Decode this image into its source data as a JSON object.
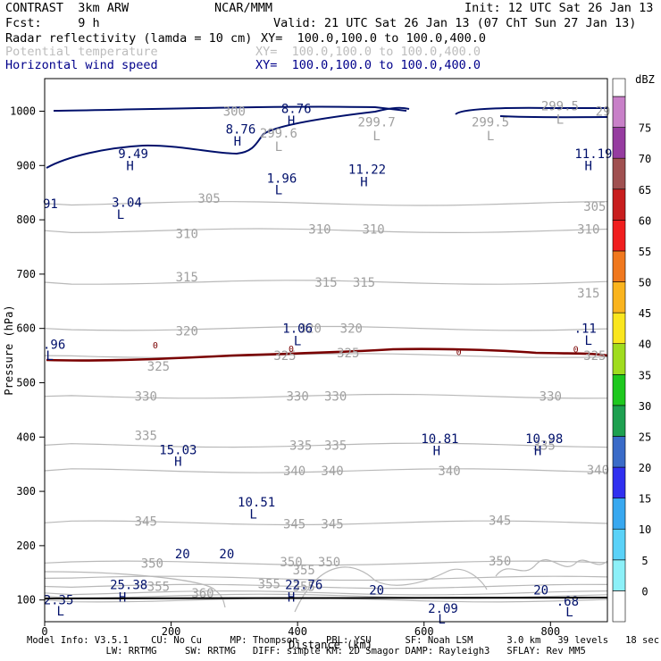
{
  "header": {
    "model": "CONTRAST  3km ARW",
    "org": "NCAR/MMM",
    "init": "Init: 12 UTC Sat 26 Jan 13",
    "fcst": "Fcst:     9 h",
    "valid": "Valid: 21 UTC Sat 26 Jan 13 (07 ChT Sun 27 Jan 13)",
    "fields": [
      {
        "label": "Radar reflectivity (lamda = 10 cm)",
        "xy": "XY=  100.0,100.0 to 100.0,400.0",
        "color": "#000000"
      },
      {
        "label": "Potential temperature",
        "xy": "XY=  100.0,100.0 to 100.0,400.0",
        "color": "#bdbdbd"
      },
      {
        "label": "Horizontal wind speed",
        "xy": "XY=  100.0,100.0 to 100.0,400.0",
        "color": "#00008b"
      }
    ]
  },
  "footer": {
    "line1": "Model Info: V3.5.1    CU: No Cu     MP: Thompson     PBL: YSU      SF: Noah LSM      3.0 km   39 levels   18 sec",
    "line2": "              LW: RRTMG     SW: RRTMG   DIFF: simple KM: 2D Smagor DAMP: Rayleigh3   SFLAY: Rev MM5"
  },
  "chart_data": {
    "type": "cross-section",
    "xlabel": "Distance (km)",
    "ylabel": "Pressure (hPa)",
    "xlim": [
      0,
      890
    ],
    "ylim": [
      1060,
      60
    ],
    "xticks": [
      0,
      200,
      400,
      600,
      800
    ],
    "yticks": [
      100,
      200,
      300,
      400,
      500,
      600,
      700,
      800,
      900,
      1000
    ],
    "colorbar": {
      "unit": "dBZ",
      "levels": [
        0,
        5,
        10,
        15,
        20,
        25,
        30,
        35,
        40,
        45,
        50,
        55,
        60,
        65,
        70,
        75
      ],
      "colors": [
        "#ffffff",
        "#8cf0f8",
        "#5ad2f8",
        "#38a8f0",
        "#3030f0",
        "#3a6bc8",
        "#1ea050",
        "#1ec81e",
        "#a0dc1e",
        "#fae61e",
        "#fab41e",
        "#f0781e",
        "#f01e1e",
        "#c81e1e",
        "#a05050",
        "#963ca0",
        "#c880c8"
      ]
    },
    "theta_labels": [
      {
        "v": "360",
        "x": 250,
        "p": 113
      },
      {
        "v": "355",
        "x": 180,
        "p": 125
      },
      {
        "v": "355",
        "x": 355,
        "p": 130
      },
      {
        "v": "355",
        "x": 410,
        "p": 125
      },
      {
        "v": "350",
        "x": 170,
        "p": 168
      },
      {
        "v": "355",
        "x": 410,
        "p": 155
      },
      {
        "v": "350",
        "x": 390,
        "p": 170
      },
      {
        "v": "350",
        "x": 450,
        "p": 170
      },
      {
        "v": "350",
        "x": 720,
        "p": 172
      },
      {
        "v": "345",
        "x": 160,
        "p": 245
      },
      {
        "v": "345",
        "x": 395,
        "p": 240
      },
      {
        "v": "345",
        "x": 455,
        "p": 240
      },
      {
        "v": "345",
        "x": 720,
        "p": 247
      },
      {
        "v": "340",
        "x": 395,
        "p": 338
      },
      {
        "v": "340",
        "x": 455,
        "p": 338
      },
      {
        "v": "340",
        "x": 640,
        "p": 338
      },
      {
        "v": "340",
        "x": 875,
        "p": 340
      },
      {
        "v": "335",
        "x": 160,
        "p": 403
      },
      {
        "v": "335",
        "x": 405,
        "p": 385
      },
      {
        "v": "335",
        "x": 460,
        "p": 385
      },
      {
        "v": "335",
        "x": 790,
        "p": 385
      },
      {
        "v": "330",
        "x": 160,
        "p": 475
      },
      {
        "v": "330",
        "x": 400,
        "p": 475
      },
      {
        "v": "330",
        "x": 460,
        "p": 475
      },
      {
        "v": "330",
        "x": 800,
        "p": 475
      },
      {
        "v": "325",
        "x": 180,
        "p": 530
      },
      {
        "v": "325",
        "x": 380,
        "p": 550
      },
      {
        "v": "325",
        "x": 480,
        "p": 555
      },
      {
        "v": "325",
        "x": 870,
        "p": 550
      },
      {
        "v": "320",
        "x": 225,
        "p": 595
      },
      {
        "v": "320",
        "x": 420,
        "p": 600
      },
      {
        "v": "320",
        "x": 485,
        "p": 600
      },
      {
        "v": "315",
        "x": 225,
        "p": 695
      },
      {
        "v": "315",
        "x": 445,
        "p": 685
      },
      {
        "v": "315",
        "x": 505,
        "p": 685
      },
      {
        "v": "315",
        "x": 860,
        "p": 665
      },
      {
        "v": "310",
        "x": 225,
        "p": 775
      },
      {
        "v": "310",
        "x": 435,
        "p": 783
      },
      {
        "v": "310",
        "x": 520,
        "p": 783
      },
      {
        "v": "310",
        "x": 860,
        "p": 783
      },
      {
        "v": "305",
        "x": 260,
        "p": 840
      },
      {
        "v": "305",
        "x": 870,
        "p": 825
      },
      {
        "v": "300",
        "x": 300,
        "p": 1000
      }
    ],
    "theta_values": [
      {
        "v": "299.6",
        "x": 370,
        "p": 960
      },
      {
        "v": "299.7",
        "x": 525,
        "p": 980
      },
      {
        "v": "299.5",
        "x": 705,
        "p": 980
      },
      {
        "v": "299.5",
        "x": 815,
        "p": 1010
      },
      {
        "v": "29",
        "x": 883,
        "p": 1000
      }
    ],
    "theta_markers": [
      {
        "t": "L",
        "x": 370,
        "p": 935
      },
      {
        "t": "L",
        "x": 525,
        "p": 955
      },
      {
        "t": "L",
        "x": 705,
        "p": 955
      },
      {
        "t": "L",
        "x": 815,
        "p": 985
      }
    ],
    "wind_contour_labels": [
      {
        "v": "20",
        "x": 218,
        "p": 185
      },
      {
        "v": "20",
        "x": 288,
        "p": 185
      },
      {
        "v": "20",
        "x": 525,
        "p": 118
      },
      {
        "v": "20",
        "x": 785,
        "p": 118
      }
    ],
    "wind_points": [
      {
        "t": "L",
        "v": "2.35",
        "x": 25,
        "p": 80,
        "vx": 22,
        "vp": 100
      },
      {
        "t": "H",
        "v": "25.38",
        "x": 123,
        "p": 105,
        "vx": 133,
        "vp": 128
      },
      {
        "t": "H",
        "v": "22.76",
        "x": 390,
        "p": 105,
        "vx": 410,
        "vp": 128
      },
      {
        "t": "L",
        "v": "2.09",
        "x": 628,
        "p": 65,
        "vx": 630,
        "vp": 85
      },
      {
        "t": "L",
        "v": ".68",
        "x": 830,
        "p": 78,
        "vx": 827,
        "vp": 98
      },
      {
        "t": "L",
        "v": "10.51",
        "x": 330,
        "p": 258,
        "vx": 335,
        "vp": 280
      },
      {
        "t": "H",
        "v": "15.03",
        "x": 211,
        "p": 355,
        "vx": 211,
        "vp": 377
      },
      {
        "t": "H",
        "v": "10.81",
        "x": 620,
        "p": 375,
        "vx": 625,
        "vp": 397
      },
      {
        "t": "H",
        "v": "10.98",
        "x": 780,
        "p": 375,
        "vx": 790,
        "vp": 397
      },
      {
        "t": "L",
        "v": ".96",
        "x": 8,
        "p": 550,
        "vx": 5,
        "vp": 571
      },
      {
        "t": "L",
        "v": "1.06",
        "x": 400,
        "p": 577,
        "vx": 400,
        "vp": 600
      },
      {
        "t": "L",
        "v": ".11",
        "x": 860,
        "p": 578,
        "vx": 855,
        "vp": 600
      },
      {
        "t": "L",
        "v": "3.04",
        "x": 120,
        "p": 810,
        "vx": 130,
        "vp": 832
      },
      {
        "t": "",
        "v": "91",
        "x": 0,
        "p": 0,
        "vx": 5,
        "vp": 830
      },
      {
        "t": "L",
        "v": "1.96",
        "x": 370,
        "p": 855,
        "vx": 375,
        "vp": 877
      },
      {
        "t": "H",
        "v": "11.22",
        "x": 505,
        "p": 870,
        "vx": 510,
        "vp": 893
      },
      {
        "t": "H",
        "v": "9.49",
        "x": 135,
        "p": 900,
        "vx": 140,
        "vp": 922
      },
      {
        "t": "H",
        "v": "11.19",
        "x": 860,
        "p": 900,
        "vx": 868,
        "vp": 922
      },
      {
        "t": "H",
        "v": "8.76",
        "x": 305,
        "p": 945,
        "vx": 310,
        "vp": 967
      },
      {
        "t": "H",
        "v": "8.76",
        "x": 390,
        "p": 983,
        "vx": 398,
        "vp": 1005
      }
    ],
    "zero_labels": [
      {
        "v": "0",
        "x": 175,
        "p": 568
      },
      {
        "v": "0",
        "x": 390,
        "p": 562
      },
      {
        "v": "0",
        "x": 655,
        "p": 556
      },
      {
        "v": "0",
        "x": 840,
        "p": 561
      }
    ]
  }
}
